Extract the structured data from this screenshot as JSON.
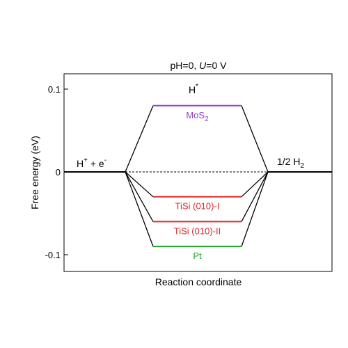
{
  "chart_data": {
    "type": "line",
    "title": "pH=0, ",
    "title_italic": "U",
    "title_tail": "=0 V",
    "xlabel": "Reaction coordinate",
    "ylabel": "Free energy (eV)",
    "ylim": [
      -0.12,
      0.12
    ],
    "yticks": [
      {
        "value": 0.1,
        "label": "0.1"
      },
      {
        "value": 0,
        "label": "0"
      },
      {
        "value": -0.1,
        "label": "-0.1"
      }
    ],
    "grid": false,
    "states": {
      "initial": {
        "base": "H",
        "sup1": "+",
        "mid": " + e",
        "sup2": "-",
        "energy": 0
      },
      "intermediate": {
        "base": "H",
        "sup": "*"
      },
      "final": {
        "base": "1/2 H",
        "sub": "2",
        "energy": 0
      }
    },
    "series": [
      {
        "base": "MoS",
        "sub": "2",
        "value": 0.08,
        "color": "#8f3fd1"
      },
      {
        "base": "TiSi (010)-I",
        "sub": "",
        "value": -0.03,
        "color": "#e0282a"
      },
      {
        "base": "TiSi (010)-II",
        "sub": "",
        "value": -0.06,
        "color": "#e0282a"
      },
      {
        "base": "Pt",
        "sub": "",
        "value": -0.09,
        "color": "#1fa329"
      }
    ]
  }
}
